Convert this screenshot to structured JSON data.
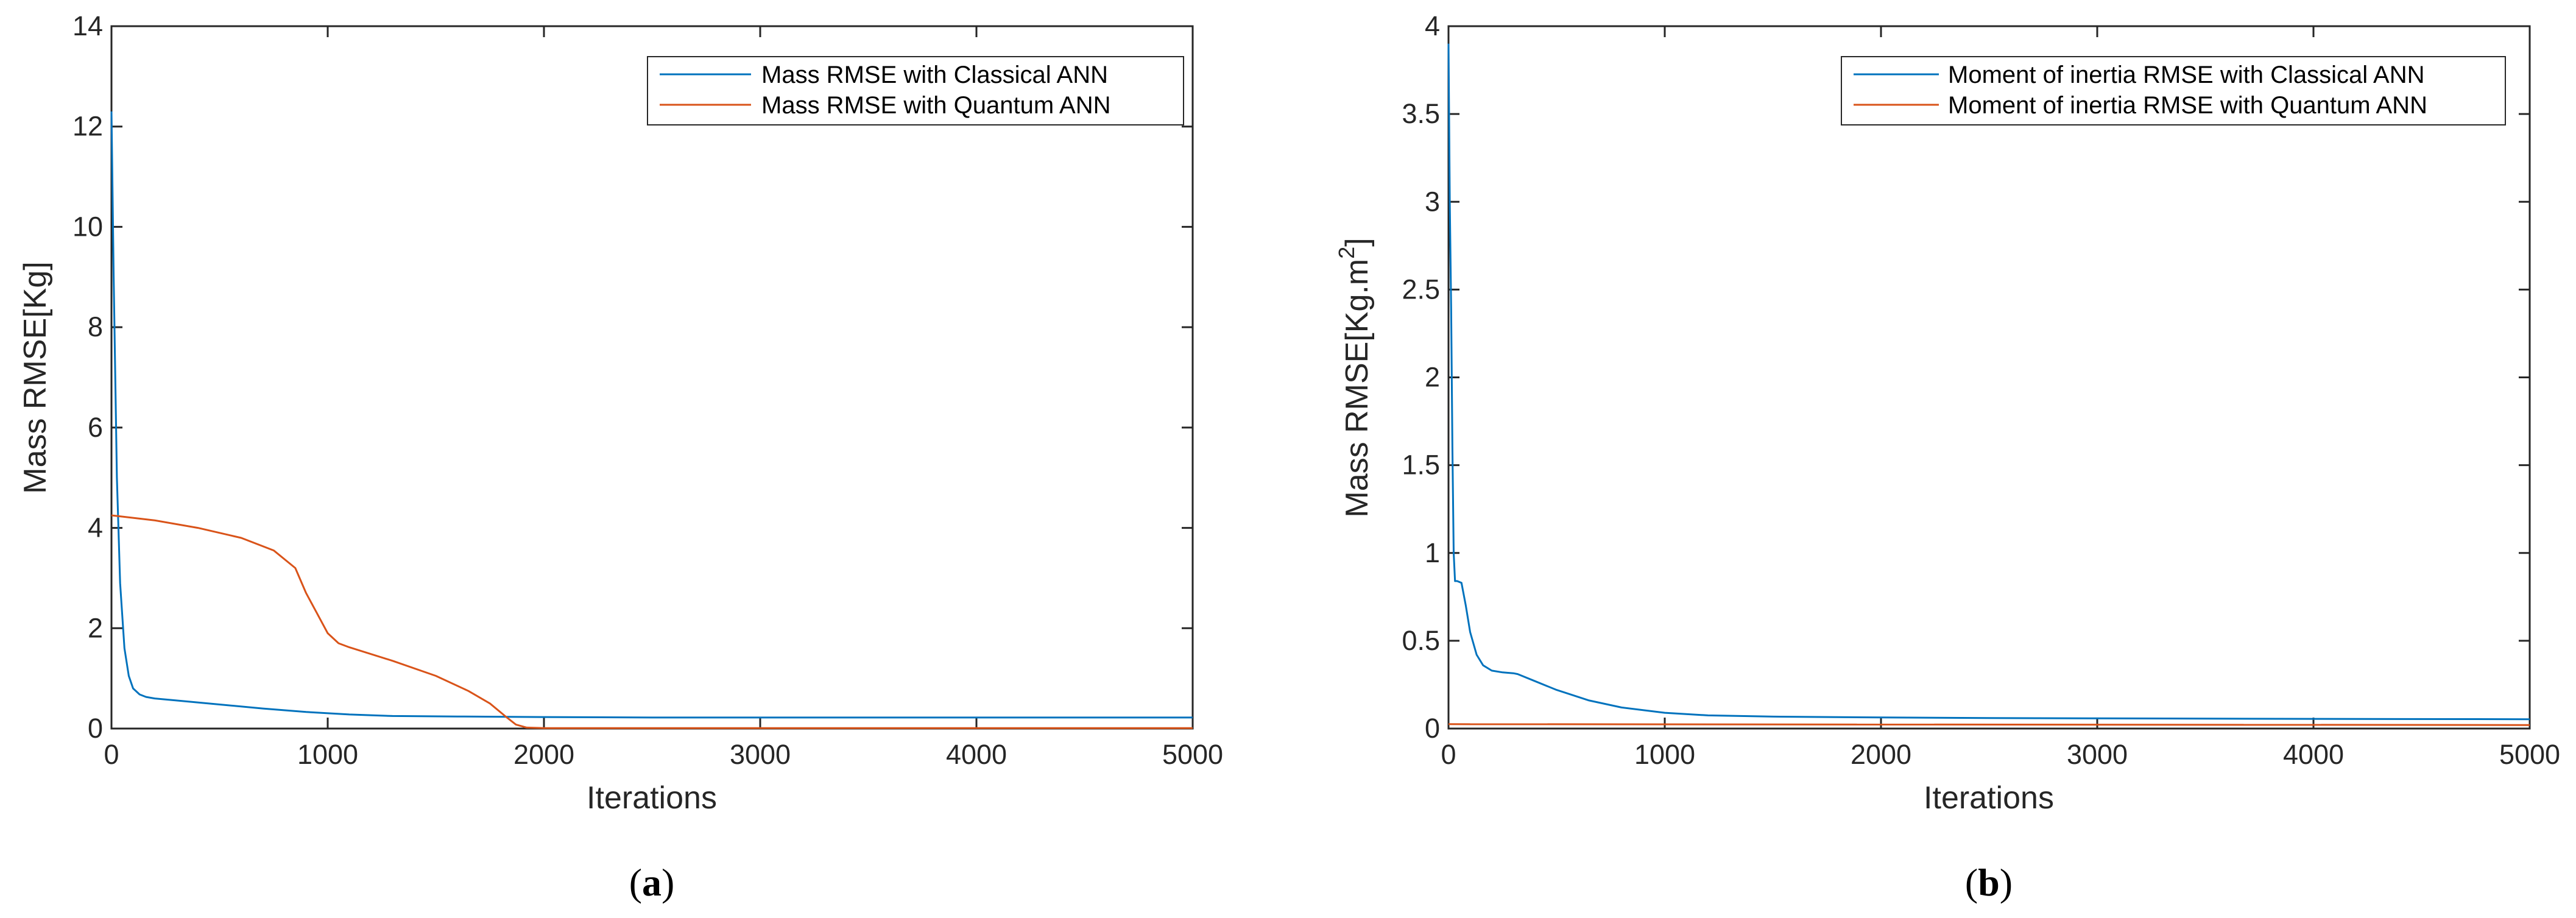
{
  "chart_data": [
    {
      "type": "line",
      "panel": "a",
      "caption": {
        "open": "(",
        "letter": "a",
        "close": ")"
      },
      "xlabel": "Iterations",
      "ylabel": "Mass RMSE[Kg]",
      "xlim": [
        0,
        5000
      ],
      "ylim": [
        0,
        14
      ],
      "xticks": [
        "0",
        "1000",
        "2000",
        "3000",
        "4000",
        "5000"
      ],
      "yticks": [
        "0",
        "2",
        "4",
        "6",
        "8",
        "10",
        "12",
        "14"
      ],
      "grid": false,
      "legend_position": "top-right",
      "series": [
        {
          "name": "Mass RMSE with Classical ANN",
          "color": "#0072BD",
          "x": [
            0,
            10,
            25,
            40,
            60,
            80,
            100,
            130,
            160,
            200,
            300,
            500,
            700,
            900,
            1100,
            1300,
            1600,
            2000,
            2500,
            3000,
            4000,
            5000
          ],
          "y": [
            12.3,
            9.0,
            5.0,
            2.9,
            1.6,
            1.05,
            0.8,
            0.68,
            0.63,
            0.6,
            0.56,
            0.48,
            0.4,
            0.33,
            0.28,
            0.25,
            0.24,
            0.23,
            0.22,
            0.22,
            0.22,
            0.22
          ]
        },
        {
          "name": "Mass RMSE with Quantum ANN",
          "color": "#D95319",
          "x": [
            0,
            200,
            400,
            600,
            750,
            850,
            900,
            950,
            1000,
            1050,
            1100,
            1300,
            1500,
            1650,
            1750,
            1820,
            1870,
            1920,
            2000,
            3000,
            4000,
            5000
          ],
          "y": [
            4.25,
            4.15,
            4.0,
            3.8,
            3.55,
            3.2,
            2.7,
            2.3,
            1.9,
            1.7,
            1.62,
            1.35,
            1.05,
            0.75,
            0.5,
            0.25,
            0.08,
            0.02,
            0.01,
            0.01,
            0.01,
            0.01
          ]
        }
      ]
    },
    {
      "type": "line",
      "panel": "b",
      "caption": {
        "open": "(",
        "letter": "b",
        "close": ")"
      },
      "xlabel": "Iterations",
      "ylabel": "Mass  RMSE[Kg.m",
      "ylabel_sup": "2",
      "ylabel_end": "]",
      "xlim": [
        0,
        5000
      ],
      "ylim": [
        0,
        4
      ],
      "xticks": [
        "0",
        "1000",
        "2000",
        "3000",
        "4000",
        "5000"
      ],
      "yticks": [
        "0",
        "0.5",
        "1",
        "1.5",
        "2",
        "2.5",
        "3",
        "3.5",
        "4"
      ],
      "grid": false,
      "legend_position": "top-right",
      "series": [
        {
          "name": "Moment of inertia RMSE with Classical ANN",
          "color": "#0072BD",
          "x": [
            0,
            6,
            12,
            18,
            24,
            30,
            40,
            60,
            80,
            100,
            130,
            160,
            200,
            250,
            300,
            320,
            400,
            500,
            650,
            800,
            1000,
            1200,
            1500,
            2000,
            2500,
            3000,
            4000,
            5000
          ],
          "y": [
            3.9,
            3.0,
            2.4,
            1.6,
            1.0,
            0.84,
            0.84,
            0.83,
            0.7,
            0.55,
            0.42,
            0.36,
            0.33,
            0.32,
            0.315,
            0.31,
            0.27,
            0.22,
            0.16,
            0.12,
            0.09,
            0.075,
            0.068,
            0.063,
            0.06,
            0.058,
            0.055,
            0.053
          ]
        },
        {
          "name": "Moment of inertia RMSE with Quantum ANN",
          "color": "#D95319",
          "x": [
            0,
            5000
          ],
          "y": [
            0.025,
            0.02
          ]
        }
      ]
    }
  ]
}
